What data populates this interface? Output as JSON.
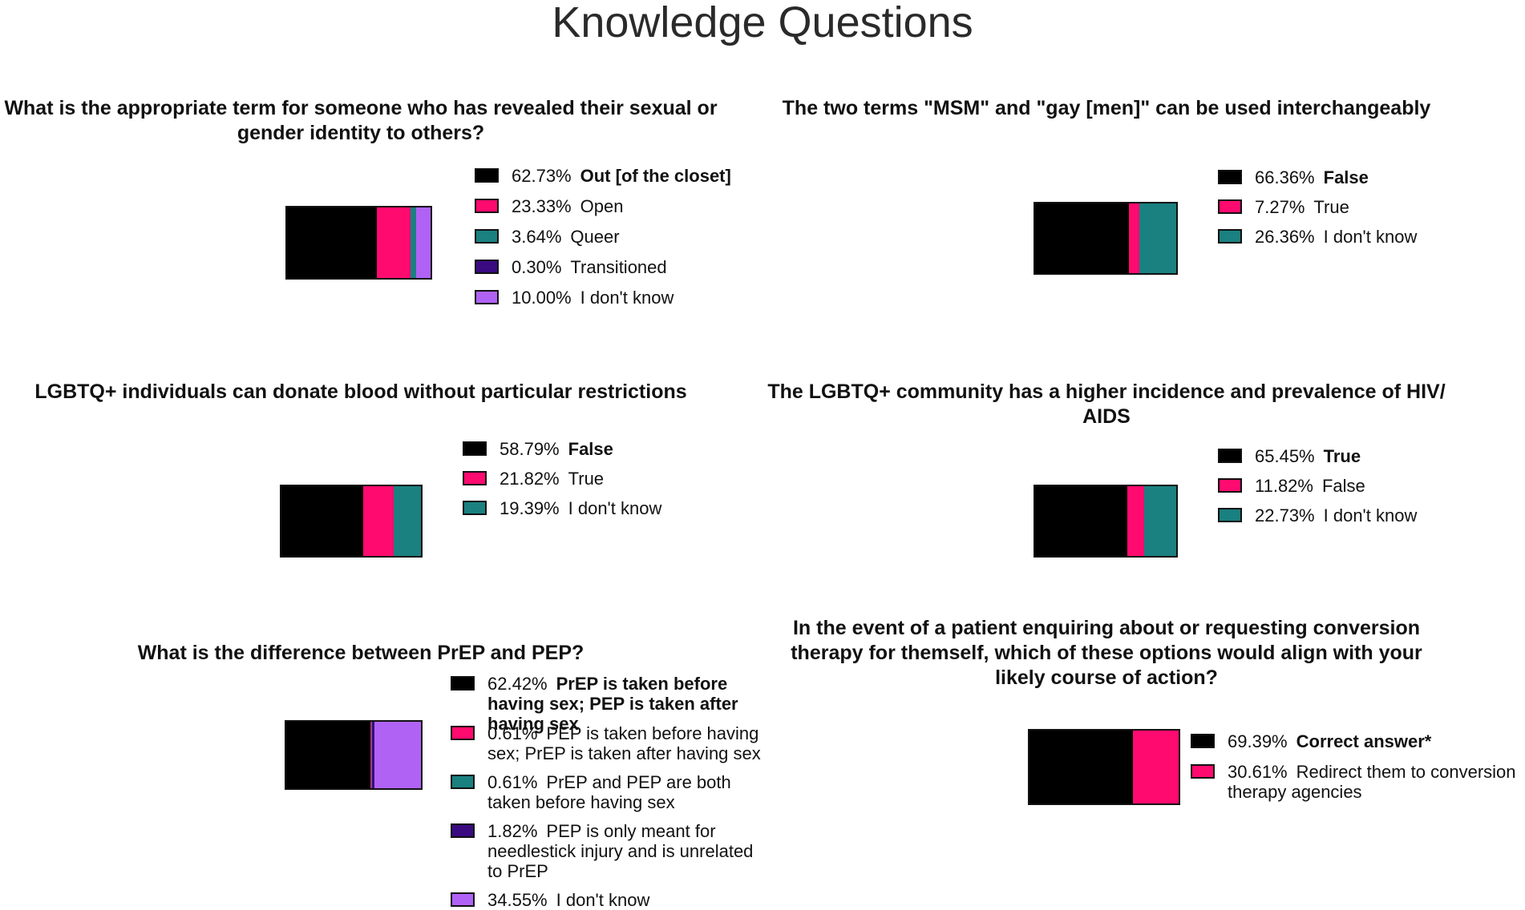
{
  "title": "Knowledge Questions",
  "colors": {
    "black": "#000000",
    "pink": "#ff0a6e",
    "teal": "#1a8080",
    "indigo": "#3a0a80",
    "lavender": "#b062f5"
  },
  "chart_data": [
    {
      "type": "bar",
      "title": "What is the appropriate term for someone who has revealed their sexual or gender identity to others?",
      "categories": [
        "Out [of the closet]",
        "Open",
        "Queer",
        "Transitioned",
        "I don't know"
      ],
      "values": [
        62.73,
        23.33,
        3.64,
        0.3,
        10.0
      ],
      "labels": [
        "62.73%",
        "23.33%",
        "3.64%",
        "0.30%",
        "10.00%"
      ],
      "colors": [
        "#000000",
        "#ff0a6e",
        "#1a8080",
        "#3a0a80",
        "#b062f5"
      ],
      "correct_index": 0
    },
    {
      "type": "bar",
      "title": "The two terms \"MSM\" and \"gay [men]\" can be used interchangeably",
      "categories": [
        "False",
        "True",
        "I don't know"
      ],
      "values": [
        66.36,
        7.27,
        26.36
      ],
      "labels": [
        "66.36%",
        "7.27%",
        "26.36%"
      ],
      "colors": [
        "#000000",
        "#ff0a6e",
        "#1a8080"
      ],
      "correct_index": 0
    },
    {
      "type": "bar",
      "title": "LGBTQ+ individuals can donate blood without particular restrictions",
      "categories": [
        "False",
        "True",
        "I don't know"
      ],
      "values": [
        58.79,
        21.82,
        19.39
      ],
      "labels": [
        "58.79%",
        "21.82%",
        "19.39%"
      ],
      "colors": [
        "#000000",
        "#ff0a6e",
        "#1a8080"
      ],
      "correct_index": 0
    },
    {
      "type": "bar",
      "title": "The LGBTQ+ community has a higher incidence and prevalence of HIV/ AIDS",
      "categories": [
        "True",
        "False",
        "I don't know"
      ],
      "values": [
        65.45,
        11.82,
        22.73
      ],
      "labels": [
        "65.45%",
        "11.82%",
        "22.73%"
      ],
      "colors": [
        "#000000",
        "#ff0a6e",
        "#1a8080"
      ],
      "correct_index": 0
    },
    {
      "type": "bar",
      "title": "What is the difference between PrEP and PEP?",
      "categories": [
        "PrEP is taken before having sex; PEP is taken after having sex",
        "PEP is taken before having sex; PrEP is taken after having sex",
        "PrEP and PEP are both taken before having sex",
        "PEP is only meant for needlestick injury and is unrelated to PrEP",
        "I don't know"
      ],
      "values": [
        62.42,
        0.61,
        0.61,
        1.82,
        34.55
      ],
      "labels": [
        "62.42%",
        "0.61%",
        "0.61%",
        "1.82%",
        "34.55%"
      ],
      "colors": [
        "#000000",
        "#ff0a6e",
        "#1a8080",
        "#3a0a80",
        "#b062f5"
      ],
      "correct_index": 0
    },
    {
      "type": "bar",
      "title": "In the event of a patient enquiring about or requesting conversion therapy for themself,  which of these options would align with your likely course of action?",
      "categories": [
        "Correct answer*",
        "Redirect them to conversion therapy agencies"
      ],
      "values": [
        69.39,
        30.61
      ],
      "labels": [
        "69.39%",
        "30.61%"
      ],
      "colors": [
        "#000000",
        "#ff0a6e"
      ],
      "correct_index": 0
    }
  ]
}
